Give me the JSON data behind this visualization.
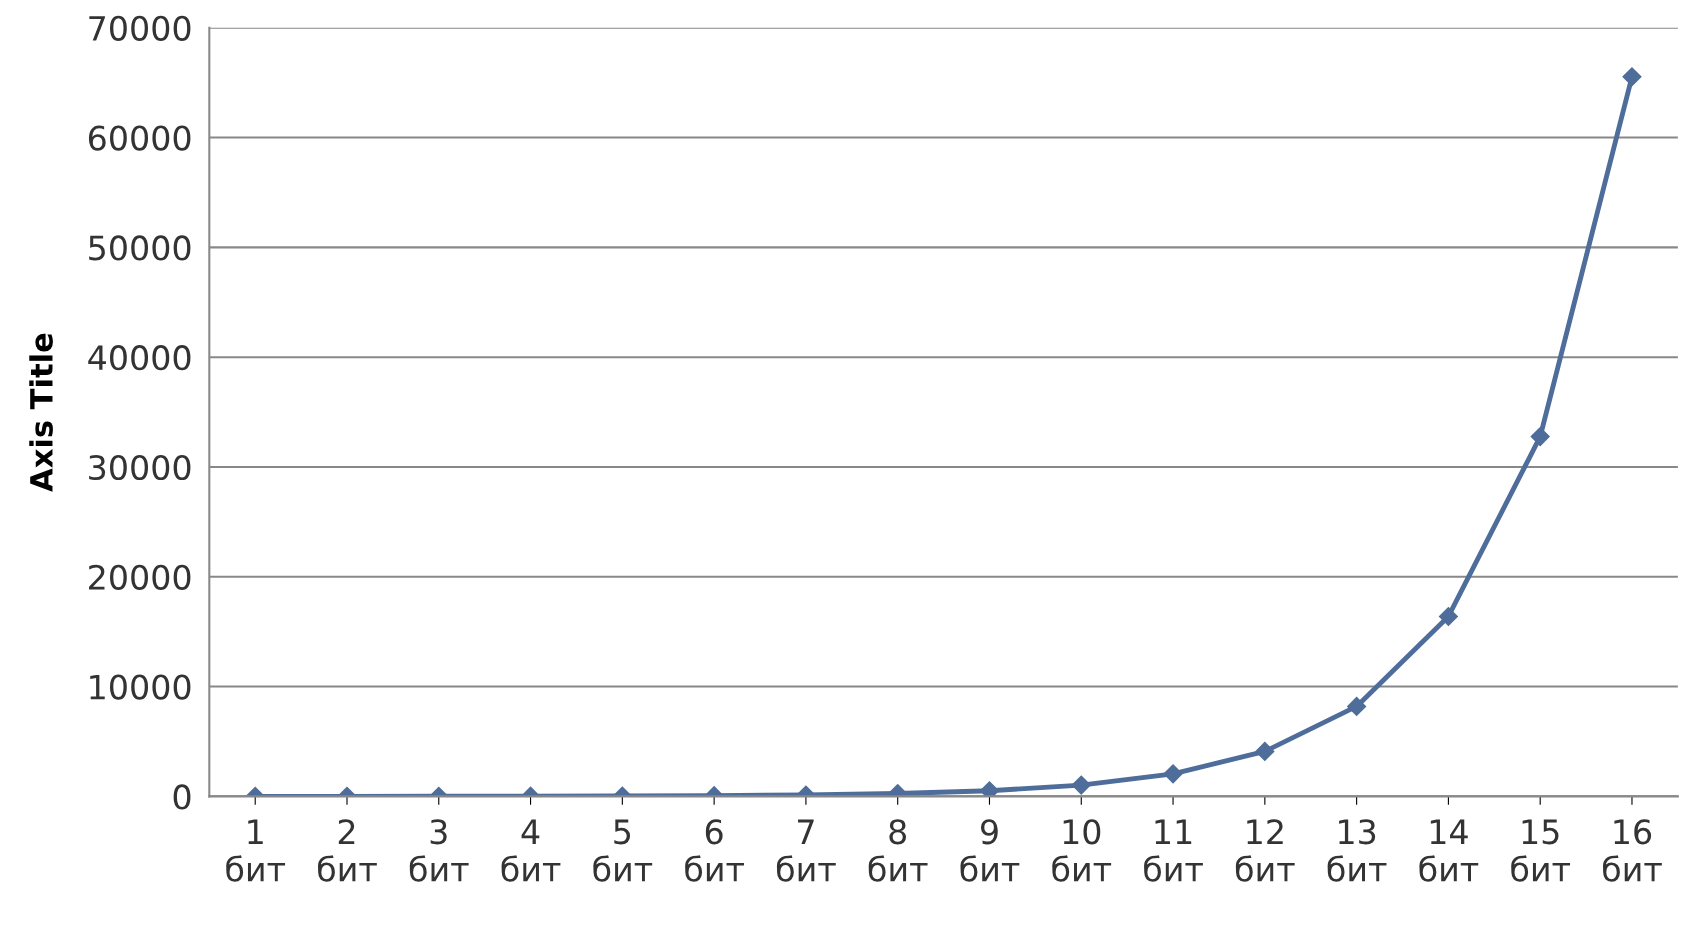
{
  "chart_data": {
    "type": "line",
    "ylabel": "Axis Title",
    "categories": [
      "1\nбит",
      "2\nбит",
      "3\nбит",
      "4\nбит",
      "5\nбит",
      "6\nбит",
      "7\nбит",
      "8\nбит",
      "9\nбит",
      "10\nбит",
      "11\nбит",
      "12\nбит",
      "13\nбит",
      "14\nбит",
      "15\nбит",
      "16\nбит"
    ],
    "series": [
      {
        "color": "#4f6d9a",
        "values": [
          2,
          4,
          8,
          16,
          32,
          64,
          128,
          256,
          512,
          1024,
          2048,
          4096,
          8192,
          16384,
          32768,
          65536
        ]
      }
    ],
    "ylim": [
      0,
      70000
    ],
    "yticks": [
      0,
      10000,
      20000,
      30000,
      40000,
      50000,
      60000,
      70000
    ],
    "grid": "y",
    "marker": "diamond",
    "line_style": "solid"
  }
}
